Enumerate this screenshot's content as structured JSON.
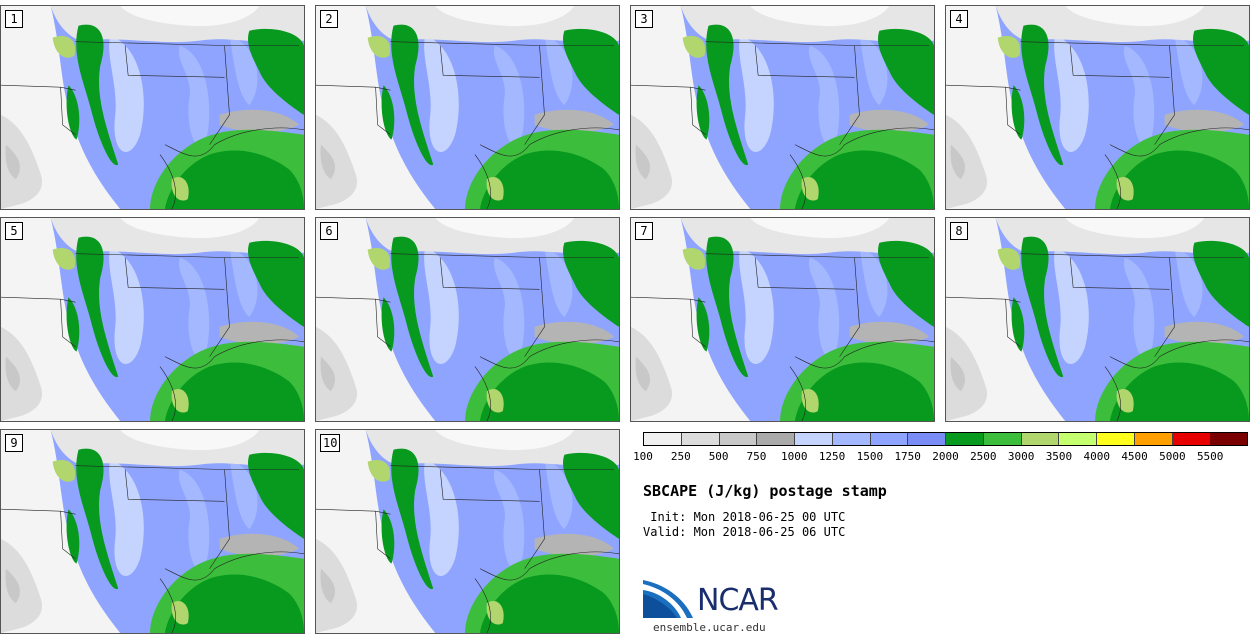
{
  "panels": [
    {
      "label": "1"
    },
    {
      "label": "2"
    },
    {
      "label": "3"
    },
    {
      "label": "4"
    },
    {
      "label": "5"
    },
    {
      "label": "6"
    },
    {
      "label": "7"
    },
    {
      "label": "8"
    },
    {
      "label": "9"
    },
    {
      "label": "10"
    }
  ],
  "colorbar": {
    "colors": [
      "#f0f0f0",
      "#dcdcdc",
      "#c8c8c8",
      "#aaaaaa",
      "#c4d4ff",
      "#a4b8ff",
      "#8ea4ff",
      "#7a8cf6",
      "#089a1e",
      "#3cbe3c",
      "#b2d66e",
      "#c4ff70",
      "#ffff1e",
      "#ffa000",
      "#e60000",
      "#7a0000"
    ],
    "labels": [
      "100",
      "250",
      "500",
      "750",
      "1000",
      "1250",
      "1500",
      "1750",
      "2000",
      "2500",
      "3000",
      "3500",
      "4000",
      "4500",
      "5000",
      "5500"
    ]
  },
  "title": "SBCAPE (J/kg) postage stamp",
  "init": " Init: Mon 2018-06-25 00 UTC",
  "valid": "Valid: Mon 2018-06-25 06 UTC",
  "logo": {
    "text": "NCAR",
    "website": "ensemble.ucar.edu"
  }
}
